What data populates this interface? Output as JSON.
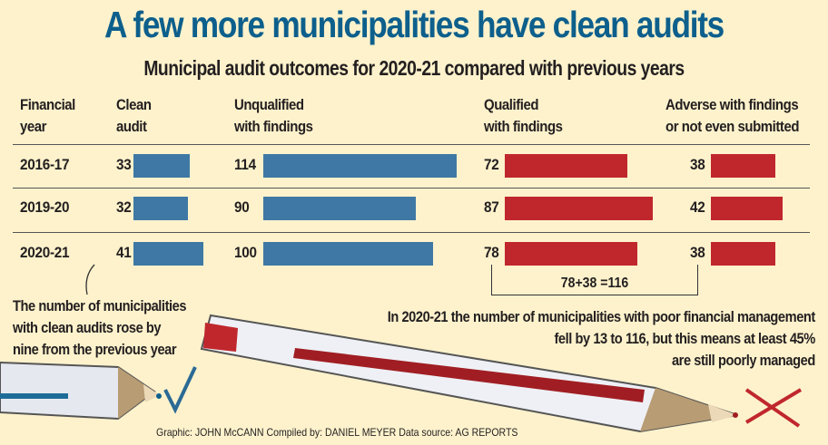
{
  "title": "A few more municipalities have clean audits",
  "subtitle": "Municipal audit outcomes for 2020-21 compared with previous years",
  "colors": {
    "background": "#fdf2cc",
    "title": "#0d5f8c",
    "positive": "#3f78a5",
    "negative": "#c0272d"
  },
  "chart_data": {
    "type": "bar",
    "title": "Municipal audit outcomes for 2020-21 compared with previous years",
    "row_header_line1": "Financial",
    "row_header_line2": "year",
    "categories": [
      "2016-17",
      "2019-20",
      "2020-21"
    ],
    "series": [
      {
        "name_line1": "Clean",
        "name_line2": "audit",
        "color": "#3f78a5",
        "values": [
          33,
          32,
          41
        ]
      },
      {
        "name_line1": "Unqualified",
        "name_line2": "with findings",
        "color": "#3f78a5",
        "values": [
          114,
          90,
          100
        ]
      },
      {
        "name_line1": "Qualified",
        "name_line2": "with findings",
        "color": "#c0272d",
        "values": [
          72,
          87,
          78
        ]
      },
      {
        "name_line1": "Adverse with findings",
        "name_line2": "or not even submitted",
        "color": "#c0272d",
        "values": [
          38,
          42,
          38
        ]
      }
    ],
    "annotations": {
      "sum": "78+38 =116",
      "left": [
        "The number of municipalities",
        "with clean audits rose by",
        "nine from the previous year"
      ],
      "right": [
        "In 2020-21 the number of municipalities with poor financial management",
        "fell by 13 to 116, but this means at least 45%",
        "are still poorly managed"
      ]
    }
  },
  "credits": "Graphic: JOHN McCANN  Compiled by: DANIEL MEYER  Data source: AG REPORTS"
}
